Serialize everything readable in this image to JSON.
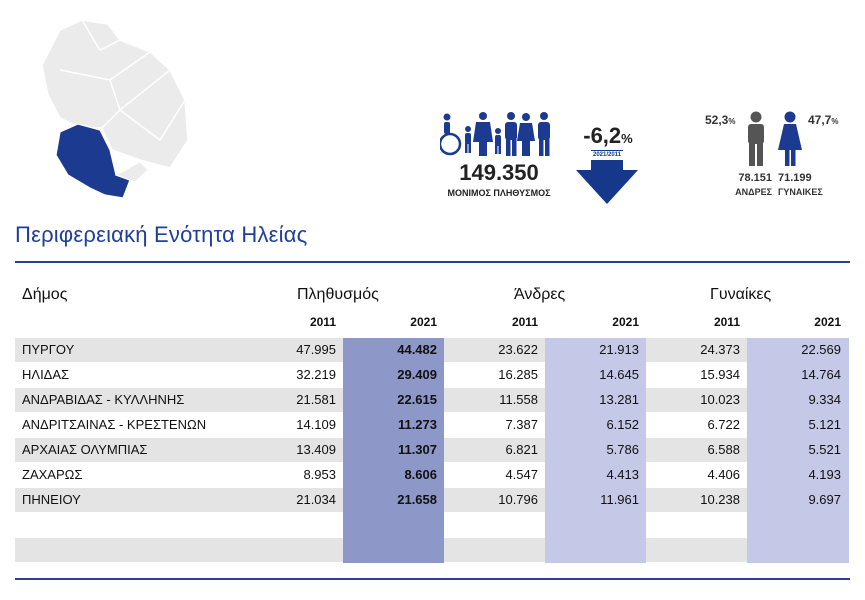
{
  "region_title": "Περιφερειακή Ενότητα Ηλείας",
  "population": {
    "value": "149.350",
    "label": "ΜΟΝΙΜΟΣ ΠΛΗΘΥΣΜΟΣ"
  },
  "change": {
    "value": "-6,2",
    "unit": "%",
    "period": "2021/2011"
  },
  "gender": {
    "men_pct": "52,3",
    "women_pct": "47,7",
    "pct_unit": "%",
    "men_count": "78.151",
    "women_count": "71.199",
    "men_label": "ΑΝΔΡΕΣ",
    "women_label": "ΓΥΝΑΙΚΕΣ"
  },
  "icons": {
    "map": "region-map-icon",
    "family": "population-group-icon",
    "arrow": "decrease-arrow-icon",
    "man": "man-icon",
    "woman": "woman-icon"
  },
  "colors": {
    "accent": "#1f3fa0",
    "map_highlight": "#1c3a8f",
    "pop_2021_col": "#8d97c8",
    "gender_2021_col": "#c5c8e6",
    "row_shade": "#e4e4e4"
  },
  "table": {
    "municipality_header": "Δήμος",
    "population_header": "Πληθυσμός",
    "men_header": "Άνδρες",
    "women_header": "Γυναίκες",
    "year_a": "2011",
    "year_b": "2021",
    "rows": [
      {
        "name": "ΠΥΡΓΟΥ",
        "pop2011": "47.995",
        "pop2021": "44.482",
        "men2011": "23.622",
        "men2021": "21.913",
        "women2011": "24.373",
        "women2021": "22.569"
      },
      {
        "name": "ΗΛΙΔΑΣ",
        "pop2011": "32.219",
        "pop2021": "29.409",
        "men2011": "16.285",
        "men2021": "14.645",
        "women2011": "15.934",
        "women2021": "14.764"
      },
      {
        "name": "ΑΝΔΡΑΒΙΔΑΣ - ΚΥΛΛΗΝΗΣ",
        "pop2011": "21.581",
        "pop2021": "22.615",
        "men2011": "11.558",
        "men2021": "13.281",
        "women2011": "10.023",
        "women2021": "9.334"
      },
      {
        "name": "ΑΝΔΡΙΤΣΑΙΝΑΣ - ΚΡΕΣΤΕΝΩΝ",
        "pop2011": "14.109",
        "pop2021": "11.273",
        "men2011": "7.387",
        "men2021": "6.152",
        "women2011": "6.722",
        "women2021": "5.121"
      },
      {
        "name": "ΑΡΧΑΙΑΣ ΟΛΥΜΠΙΑΣ",
        "pop2011": "13.409",
        "pop2021": "11.307",
        "men2011": "6.821",
        "men2021": "5.786",
        "women2011": "6.588",
        "women2021": "5.521"
      },
      {
        "name": "ΖΑΧΑΡΩΣ",
        "pop2011": "8.953",
        "pop2021": "8.606",
        "men2011": "4.547",
        "men2021": "4.413",
        "women2011": "4.406",
        "women2021": "4.193"
      },
      {
        "name": "ΠΗΝΕΙΟΥ",
        "pop2011": "21.034",
        "pop2021": "21.658",
        "men2011": "10.796",
        "men2021": "11.961",
        "women2011": "10.238",
        "women2021": "9.697"
      },
      {
        "name": "",
        "pop2011": "",
        "pop2021": "",
        "men2011": "",
        "men2021": "",
        "women2011": "",
        "women2021": ""
      },
      {
        "name": "",
        "pop2011": "",
        "pop2021": "",
        "men2011": "",
        "men2021": "",
        "women2011": "",
        "women2021": ""
      }
    ]
  }
}
